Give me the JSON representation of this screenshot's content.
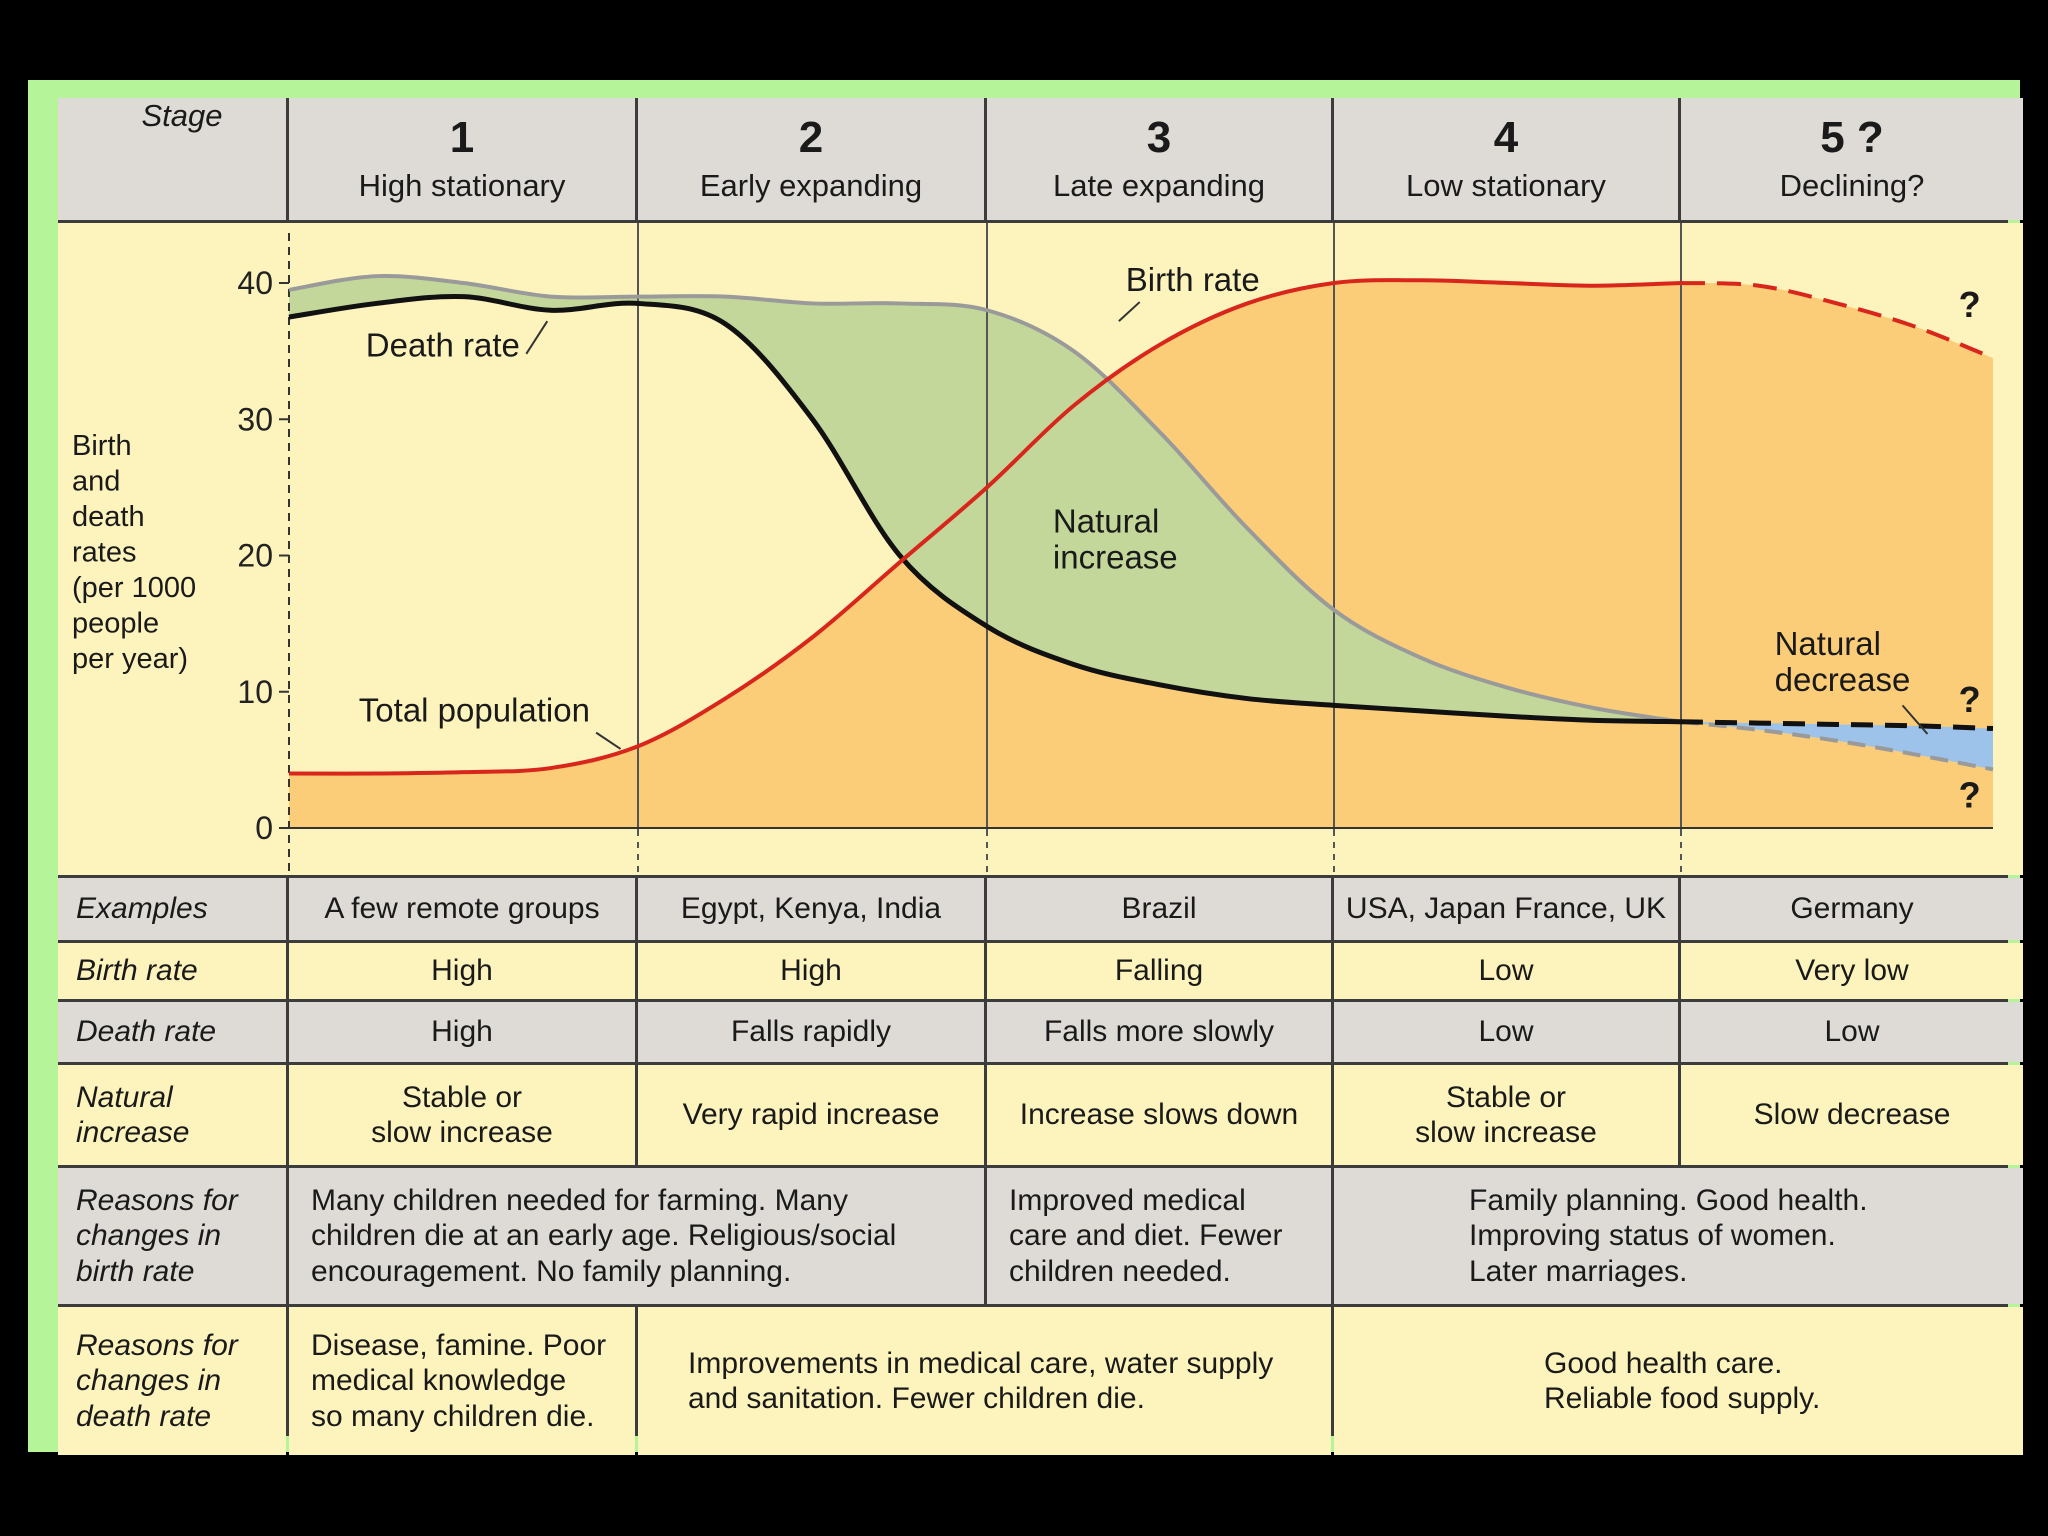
{
  "chart_data": {
    "type": "area",
    "title": "",
    "ylabel": "Birth and death rates (per 1000 people per year)",
    "ylim": [
      0,
      40
    ],
    "yticks": [
      0,
      10,
      20,
      30,
      40
    ],
    "stage_header_label": "Stage",
    "stages": [
      {
        "number": "1",
        "name": "High stationary"
      },
      {
        "number": "2",
        "name": "Early expanding"
      },
      {
        "number": "3",
        "name": "Late expanding"
      },
      {
        "number": "4",
        "name": "Low stationary"
      },
      {
        "number": "5 ?",
        "name": "Declining?"
      }
    ],
    "x": [
      0,
      0.25,
      0.5,
      0.75,
      1,
      1.25,
      1.5,
      1.75,
      2,
      2.25,
      2.5,
      2.75,
      3,
      3.25,
      3.5,
      3.75,
      4,
      4.25,
      4.5,
      4.75,
      5
    ],
    "series": [
      {
        "name": "Birth rate",
        "values": [
          39.5,
          40.5,
          40,
          39,
          39,
          39,
          38.5,
          38.5,
          38,
          35,
          29,
          22,
          16,
          12.5,
          10.3,
          8.8,
          7.8,
          7.2,
          6.4,
          5.4,
          4.3
        ]
      },
      {
        "name": "Death rate",
        "values": [
          37.5,
          38.5,
          39,
          38,
          38.5,
          37,
          30,
          20,
          14.8,
          12,
          10.5,
          9.5,
          9,
          8.6,
          8.2,
          7.9,
          7.8,
          7.7,
          7.6,
          7.5,
          7.3
        ]
      },
      {
        "name": "Total population",
        "values": [
          4,
          4,
          4.1,
          4.4,
          6,
          9.5,
          14,
          19.5,
          25,
          31,
          35.5,
          38.5,
          40,
          40.2,
          40,
          39.8,
          40,
          39.8,
          38.5,
          36.8,
          34.5
        ]
      }
    ],
    "projection_from_x": 4,
    "annotations": {
      "birth_rate": "Birth rate",
      "death_rate": "Death rate",
      "total_population": "Total population",
      "natural_increase": "Natural\nincrease",
      "natural_decrease": "Natural\ndecrease",
      "question_mark": "?"
    },
    "colors": {
      "birth_area": "#c4d79a",
      "population_area": "#fbcd78",
      "population_line": "#d8261c",
      "birth_line": "#9a9a9a",
      "death_line": "#111111",
      "decrease_area": "#9dc3ea",
      "chart_bg": "#fdf3bd"
    },
    "grid": false,
    "legend": "none"
  },
  "table": {
    "rows": [
      {
        "label": "Examples",
        "cells": [
          "A few remote groups",
          "Egypt, Kenya, India",
          "Brazil",
          "USA, Japan France, UK",
          "Germany"
        ]
      },
      {
        "label": "Birth rate",
        "cells": [
          "High",
          "High",
          "Falling",
          "Low",
          "Very low"
        ]
      },
      {
        "label": "Death rate",
        "cells": [
          "High",
          "Falls rapidly",
          "Falls more slowly",
          "Low",
          "Low"
        ]
      },
      {
        "label": "Natural\nincrease",
        "cells": [
          "Stable or\nslow increase",
          "Very rapid increase",
          "Increase slows down",
          "Stable or\nslow increase",
          "Slow decrease"
        ]
      }
    ],
    "reasons_birth": {
      "label": "Reasons for\nchanges in\nbirth rate",
      "stage_1_2": "Many children needed for farming. Many\nchildren die at an early age. Religious/social\nencouragement. No family planning.",
      "stage_3": "Improved medical\ncare and diet. Fewer\nchildren needed.",
      "stage_4_5": "Family planning. Good health.\nImproving status of women.\nLater marriages."
    },
    "reasons_death": {
      "label": "Reasons for\nchanges in\ndeath rate",
      "stage_1": "Disease, famine. Poor\nmedical knowledge\nso many children die.",
      "stage_2_3": "Improvements in medical care, water supply\nand sanitation. Fewer children die.",
      "stage_4_5": "Good health care.\nReliable food supply."
    }
  }
}
